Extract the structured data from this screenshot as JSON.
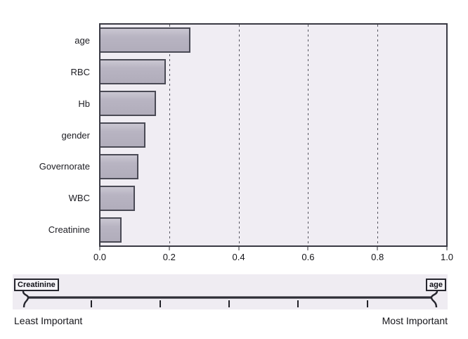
{
  "chart_data": {
    "type": "bar",
    "orientation": "horizontal",
    "title": "",
    "xlabel": "",
    "ylabel": "",
    "categories": [
      "age",
      "RBC",
      "Hb",
      "gender",
      "Governorate",
      "WBC",
      "Creatinine"
    ],
    "values": [
      0.26,
      0.19,
      0.16,
      0.13,
      0.11,
      0.1,
      0.06
    ],
    "xlim": [
      0.0,
      1.0
    ],
    "xticks": [
      0.0,
      0.2,
      0.4,
      0.6,
      0.8,
      1.0
    ],
    "xtick_labels": [
      "0.0",
      "0.2",
      "0.4",
      "0.6",
      "0.8",
      "1.0"
    ],
    "grid": "vertical dashed lines at interior x ticks",
    "legend": "none"
  },
  "slider": {
    "left_thumb_label": "Creatinine",
    "right_thumb_label": "age",
    "left_caption": "Least Important",
    "right_caption": "Most Important"
  },
  "colors": {
    "bar_fill": "#b7b3c1",
    "bar_border": "#4a4a55",
    "plot_bg": "#f0edf3",
    "plot_border": "#3a3a44",
    "panel_bg": "#efecf2",
    "grid": "#55555f",
    "axis": "#2a2a32",
    "text": "#15151a",
    "track": "#2d2d35"
  }
}
